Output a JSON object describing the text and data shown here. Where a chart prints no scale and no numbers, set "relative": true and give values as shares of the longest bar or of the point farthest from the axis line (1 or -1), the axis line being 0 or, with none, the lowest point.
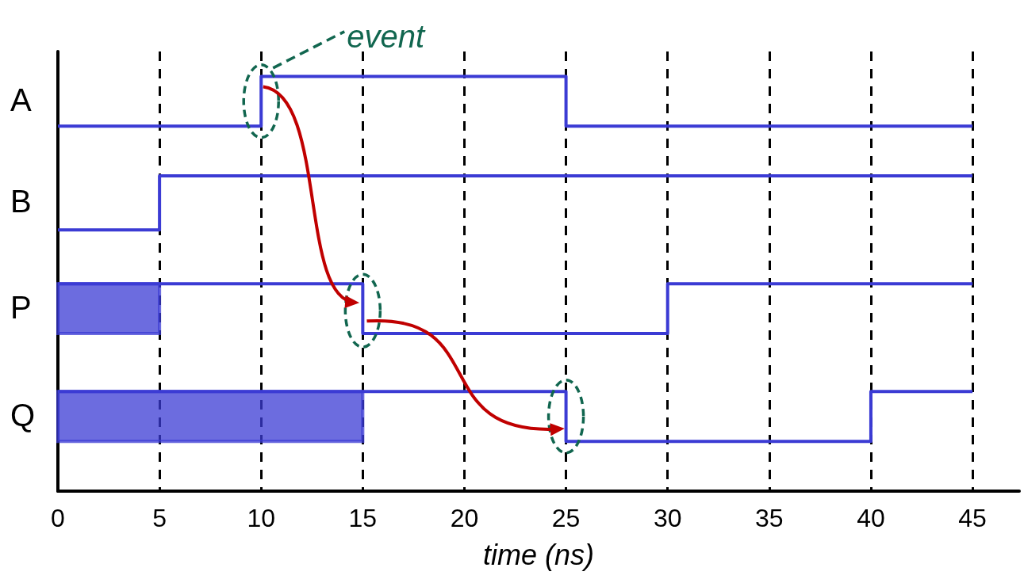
{
  "chart_data": {
    "type": "step",
    "xlabel": "time (ns)",
    "annotations": [
      "event"
    ],
    "relative": true,
    "xlim": [
      0,
      47.3
    ],
    "xticks": [
      0,
      5,
      10,
      15,
      20,
      25,
      30,
      35,
      40,
      45
    ],
    "grid": "x",
    "marker": "none",
    "line_style": "solid",
    "series": [
      {
        "name": "A",
        "color": "#3b3bd4",
        "x": [
          0,
          10,
          25,
          45
        ],
        "values": [
          0.88,
          1,
          0.88,
          0.88
        ]
      },
      {
        "name": "B",
        "color": "#3b3bd4",
        "x": [
          0,
          5,
          45
        ],
        "values": [
          0.63,
          0.76,
          0.76
        ]
      },
      {
        "name": "P",
        "color": "#3b3bd4",
        "x": [
          0,
          5,
          15,
          30,
          45
        ],
        "values": [
          0.5,
          0.5,
          0.38,
          0.5,
          0.5
        ],
        "lower": [
          0.38,
          0.38,
          null,
          null,
          null
        ],
        "upper": [
          0.5,
          0.5,
          null,
          null,
          null
        ]
      },
      {
        "name": "Q",
        "color": "#3b3bd4",
        "x": [
          0,
          15,
          25,
          40,
          45
        ],
        "values": [
          0.24,
          0.24,
          0.12,
          0.24,
          0.24
        ],
        "lower": [
          0.12,
          0.12,
          null,
          null,
          null
        ],
        "upper": [
          0.24,
          0.24,
          null,
          null,
          null
        ]
      }
    ]
  }
}
